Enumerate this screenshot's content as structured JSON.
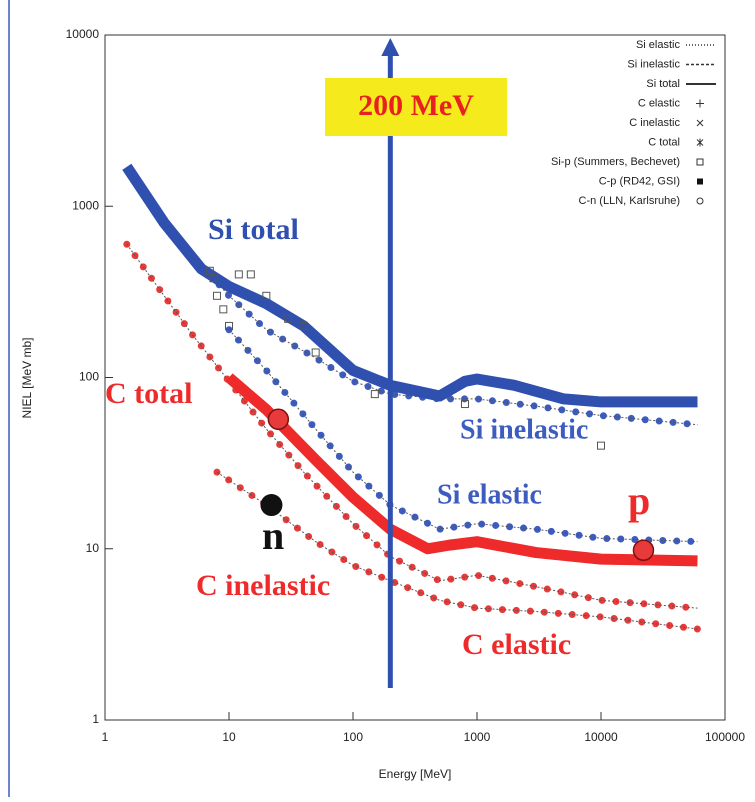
{
  "chart_data": {
    "type": "line",
    "xlabel": "Energy [MeV]",
    "ylabel": "NIEL [MeV mb]",
    "log_x": true,
    "log_y": true,
    "xlim": [
      1,
      100000
    ],
    "ylim": [
      1,
      10000
    ],
    "xticks": [
      1,
      10,
      100,
      1000,
      10000,
      100000
    ],
    "yticks": [
      1,
      10,
      100,
      1000,
      10000
    ],
    "series": [
      {
        "name": "Si elastic",
        "color": "#3d5cc0",
        "style": "dots",
        "legend_symbol": "dotted",
        "x": [
          10,
          20,
          50,
          100,
          200,
          500,
          1000,
          3000,
          10000,
          60000
        ],
        "values": [
          190,
          110,
          50,
          28,
          18,
          13,
          14,
          13,
          11.5,
          11
        ]
      },
      {
        "name": "Si inelastic",
        "color": "#3d5cc0",
        "style": "dots",
        "legend_symbol": "dashed",
        "x": [
          7,
          10,
          20,
          50,
          100,
          200,
          500,
          1000,
          3000,
          10000,
          60000
        ],
        "values": [
          400,
          300,
          190,
          130,
          95,
          80,
          75,
          75,
          68,
          60,
          53
        ]
      },
      {
        "name": "Si total",
        "color": "#3050b0",
        "style": "thick",
        "legend_symbol": "solid",
        "x": [
          1.5,
          3,
          6,
          10,
          20,
          40,
          100,
          200,
          500,
          800,
          1000,
          2000,
          5000,
          10000,
          60000
        ],
        "values": [
          1700,
          800,
          430,
          340,
          270,
          200,
          110,
          90,
          78,
          95,
          98,
          90,
          75,
          72,
          72
        ]
      },
      {
        "name": "C elastic",
        "color": "#e83a3a",
        "style": "dots",
        "legend_symbol": "plus",
        "x": [
          8,
          20,
          50,
          100,
          200,
          500,
          1000,
          3000,
          10000,
          60000
        ],
        "values": [
          28,
          18,
          11,
          8,
          6.5,
          5,
          4.5,
          4.3,
          4,
          3.4
        ]
      },
      {
        "name": "C inelastic",
        "color": "#e83a3a",
        "style": "dots",
        "legend_symbol": "x",
        "x": [
          1.5,
          3,
          5,
          10,
          20,
          40,
          100,
          200,
          500,
          1000,
          3000,
          10000,
          60000
        ],
        "values": [
          600,
          300,
          180,
          95,
          50,
          28,
          14,
          9,
          6.5,
          7,
          6,
          5,
          4.5
        ]
      },
      {
        "name": "C total",
        "color": "#ee2a2a",
        "style": "thick",
        "legend_symbol": "star",
        "x": [
          10,
          20,
          50,
          100,
          200,
          400,
          600,
          1000,
          3000,
          10000,
          60000
        ],
        "values": [
          100,
          65,
          33,
          20,
          13,
          10,
          10.5,
          11,
          9.5,
          8.7,
          8.5
        ]
      },
      {
        "name": "Si-p (Summers, Bechevet)",
        "color": "#555555",
        "style": "squares",
        "legend_symbol": "square",
        "x": [
          7,
          7.5,
          8,
          9,
          10,
          12,
          15,
          20,
          30,
          40,
          50,
          150,
          800,
          10000
        ],
        "values": [
          420,
          380,
          300,
          250,
          200,
          400,
          400,
          300,
          220,
          200,
          140,
          80,
          70,
          40
        ]
      },
      {
        "name": "C-p (RD42, GSI)",
        "color": "#111111",
        "style": "filled",
        "legend_symbol": "filled-square",
        "x": [
          22
        ],
        "values": [
          18
        ]
      },
      {
        "name": "C-n (LLN, Karlsruhe)",
        "color": "#111111",
        "style": "circles",
        "legend_symbol": "circle",
        "x": [],
        "values": []
      }
    ],
    "highlights": {
      "color": "#e83a3a",
      "x": [
        25,
        22000
      ],
      "values": [
        57,
        9.8
      ]
    },
    "marker_line": {
      "x": 200,
      "color": "#3050b0",
      "label": "200 MeV"
    },
    "annotations": [
      "Si total",
      "C total",
      "Si inelastic",
      "Si elastic",
      "C inelastic",
      "C elastic",
      "p",
      "n"
    ]
  }
}
